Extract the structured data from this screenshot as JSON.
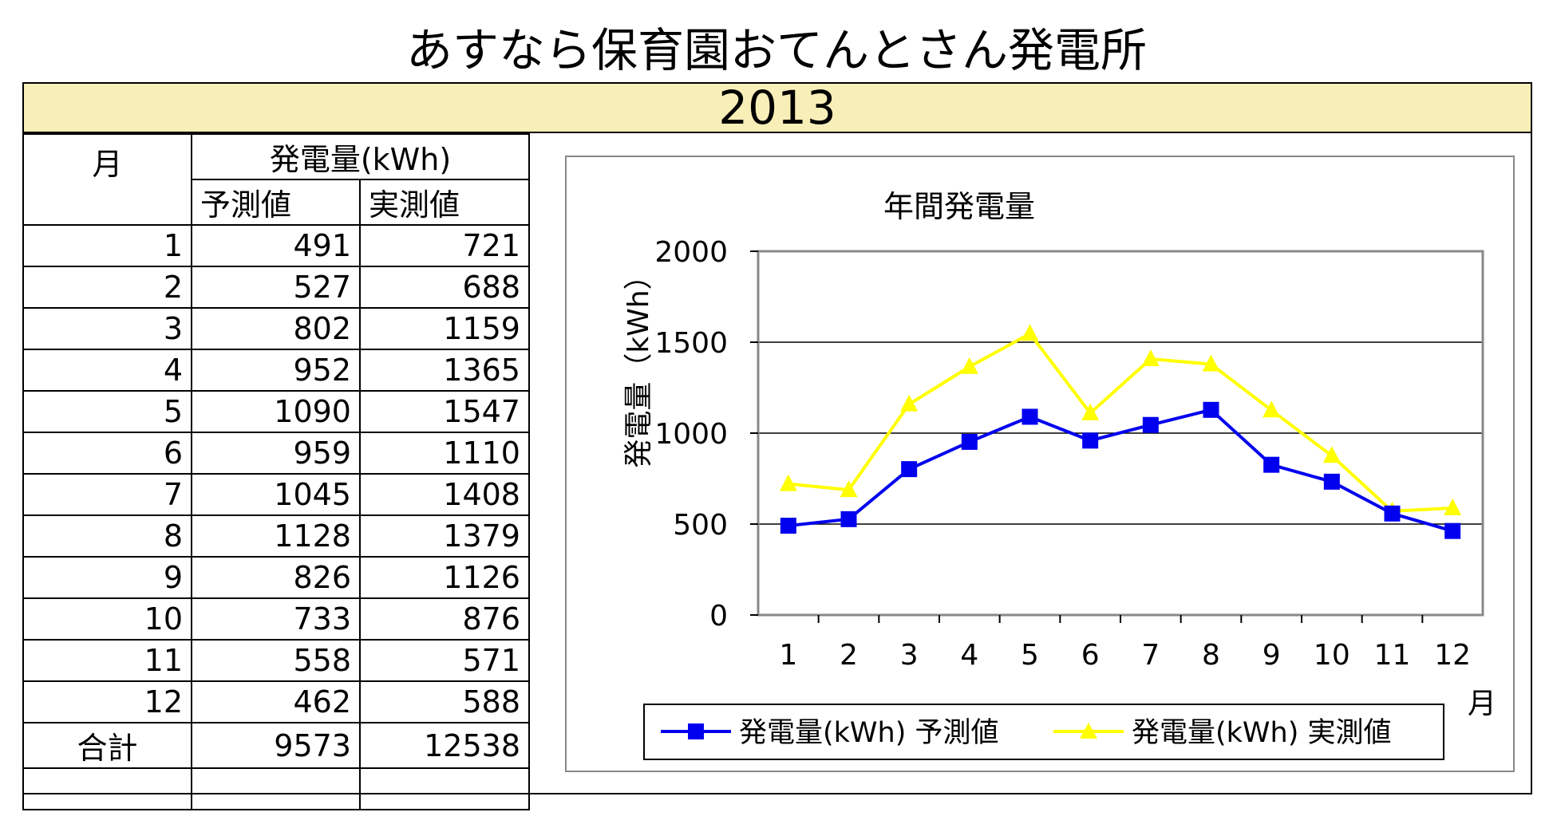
{
  "page": {
    "title": "あすなら保育園おてんとさん発電所",
    "year": "2013"
  },
  "table": {
    "month_header": "月",
    "group_header": "発電量(kWh)",
    "col_forecast": "予測値",
    "col_actual": "実測値",
    "rows": [
      {
        "month": "1",
        "forecast": "491",
        "actual": "721"
      },
      {
        "month": "2",
        "forecast": "527",
        "actual": "688"
      },
      {
        "month": "3",
        "forecast": "802",
        "actual": "1159"
      },
      {
        "month": "4",
        "forecast": "952",
        "actual": "1365"
      },
      {
        "month": "5",
        "forecast": "1090",
        "actual": "1547"
      },
      {
        "month": "6",
        "forecast": "959",
        "actual": "1110"
      },
      {
        "month": "7",
        "forecast": "1045",
        "actual": "1408"
      },
      {
        "month": "8",
        "forecast": "1128",
        "actual": "1379"
      },
      {
        "month": "9",
        "forecast": "826",
        "actual": "1126"
      },
      {
        "month": "10",
        "forecast": "733",
        "actual": "876"
      },
      {
        "month": "11",
        "forecast": "558",
        "actual": "571"
      },
      {
        "month": "12",
        "forecast": "462",
        "actual": "588"
      }
    ],
    "total_label": "合計",
    "total_forecast": "9573",
    "total_actual": "12538"
  },
  "colors": {
    "forecast": "#0000ee",
    "actual": "#ffff00",
    "year_bar": "#f8eeb8"
  },
  "chart_data": {
    "type": "line",
    "title": "年間発電量",
    "xlabel": "月",
    "ylabel": "発電量（kWh）",
    "categories": [
      "1",
      "2",
      "3",
      "4",
      "5",
      "6",
      "7",
      "8",
      "9",
      "10",
      "11",
      "12"
    ],
    "ylim": [
      0,
      2000
    ],
    "yticks": [
      0,
      500,
      1000,
      1500,
      2000
    ],
    "grid": true,
    "legend_position": "bottom",
    "series": [
      {
        "name": "発電量(kWh) 予測値",
        "marker": "square",
        "color": "#0000ee",
        "values": [
          491,
          527,
          802,
          952,
          1090,
          959,
          1045,
          1128,
          826,
          733,
          558,
          462
        ]
      },
      {
        "name": "発電量(kWh) 実測値",
        "marker": "triangle",
        "color": "#ffff00",
        "values": [
          721,
          688,
          1159,
          1365,
          1547,
          1110,
          1408,
          1379,
          1126,
          876,
          571,
          588
        ]
      }
    ]
  }
}
